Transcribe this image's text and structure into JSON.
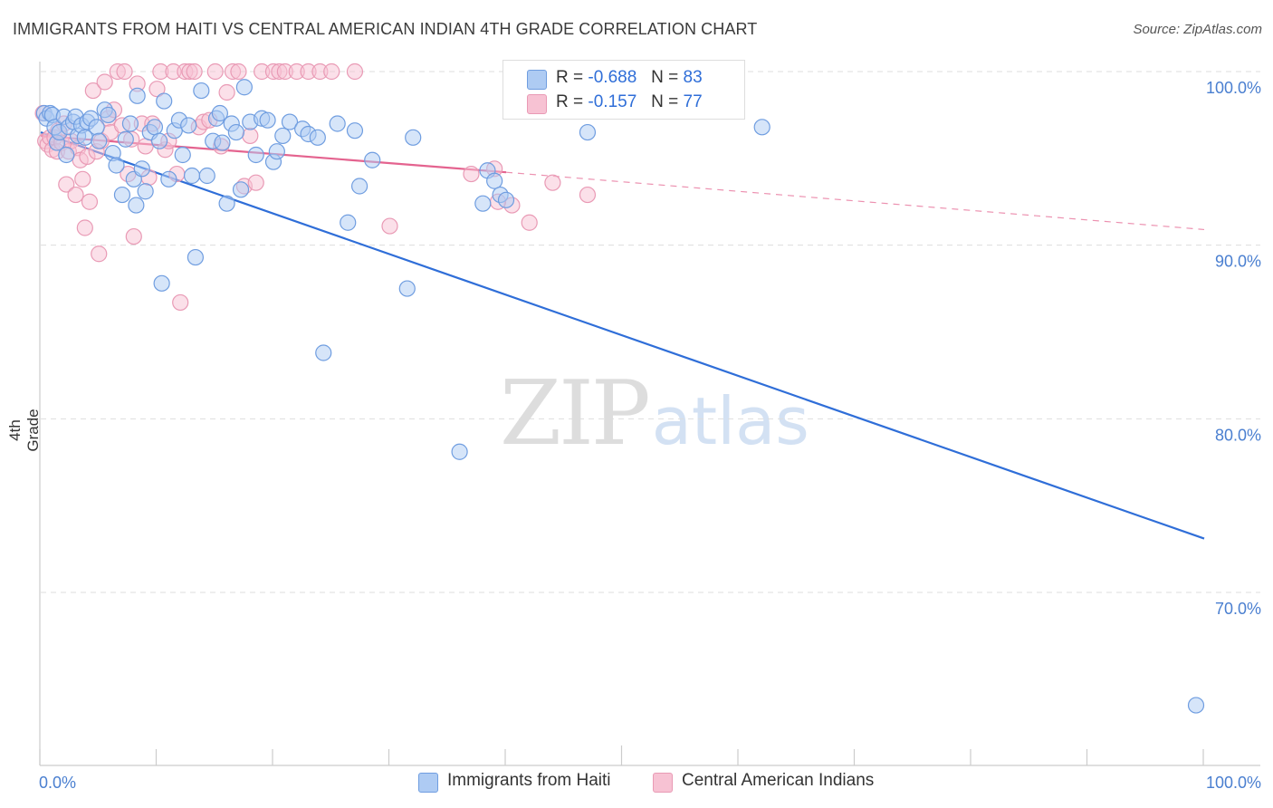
{
  "title": "IMMIGRANTS FROM HAITI VS CENTRAL AMERICAN INDIAN 4TH GRADE CORRELATION CHART",
  "source": "Source: ZipAtlas.com",
  "watermark": {
    "zip": "ZIP",
    "atlas": "atlas"
  },
  "legend": {
    "rows": [
      {
        "r_label": "R =",
        "r_value": "-0.688",
        "n_label": "N =",
        "n_value": "83"
      },
      {
        "r_label": "R =",
        "r_value": "-0.157",
        "n_label": "N =",
        "n_value": "77"
      }
    ]
  },
  "colors": {
    "blue_fill": "#aecbf3",
    "blue_stroke": "#6f9de0",
    "blue_line": "#2f6ed8",
    "pink_fill": "#f7c2d3",
    "pink_stroke": "#e99ab5",
    "pink_line": "#e4638f",
    "grid": "#dddddd",
    "tick_text": "#4a7fd0"
  },
  "chart_data": {
    "type": "scatter",
    "title": "IMMIGRANTS FROM HAITI VS CENTRAL AMERICAN INDIAN 4TH GRADE CORRELATION CHART",
    "xlabel": "",
    "ylabel": "4th Grade",
    "xlim": [
      0,
      100
    ],
    "ylim": [
      60.5,
      101
    ],
    "x_tick_labels": [
      "0.0%",
      "100.0%"
    ],
    "y_ticks": [
      70,
      80,
      90,
      100
    ],
    "y_tick_labels": [
      "70.0%",
      "80.0%",
      "90.0%",
      "100.0%"
    ],
    "grid": true,
    "legend_position": "bottom",
    "series": [
      {
        "name": "Immigrants from Haiti",
        "stats": {
          "R": -0.688,
          "N": 83
        },
        "trend": {
          "x0": 0,
          "y0": 96.5,
          "x1": 100,
          "y1": 73.1
        },
        "points": [
          [
            0.3,
            97.6
          ],
          [
            0.5,
            97.3
          ],
          [
            0.8,
            97.6
          ],
          [
            1.0,
            97.5
          ],
          [
            1.2,
            96.8
          ],
          [
            1.4,
            95.9
          ],
          [
            1.6,
            96.5
          ],
          [
            2.0,
            97.4
          ],
          [
            2.2,
            95.2
          ],
          [
            2.4,
            96.8
          ],
          [
            2.8,
            97.1
          ],
          [
            3.0,
            97.4
          ],
          [
            3.2,
            96.3
          ],
          [
            3.5,
            96.9
          ],
          [
            3.8,
            96.2
          ],
          [
            4.0,
            97.1
          ],
          [
            4.3,
            97.3
          ],
          [
            4.8,
            96.8
          ],
          [
            5.0,
            96.0
          ],
          [
            5.5,
            97.8
          ],
          [
            5.8,
            97.5
          ],
          [
            6.2,
            95.3
          ],
          [
            6.5,
            94.6
          ],
          [
            7.0,
            92.9
          ],
          [
            7.3,
            96.1
          ],
          [
            7.7,
            97.0
          ],
          [
            8.0,
            93.8
          ],
          [
            8.3,
            98.6
          ],
          [
            8.7,
            94.4
          ],
          [
            9.0,
            93.1
          ],
          [
            9.4,
            96.5
          ],
          [
            9.8,
            96.8
          ],
          [
            10.2,
            96.0
          ],
          [
            10.6,
            98.3
          ],
          [
            11.0,
            93.8
          ],
          [
            11.5,
            96.6
          ],
          [
            11.9,
            97.2
          ],
          [
            12.2,
            95.2
          ],
          [
            12.7,
            96.9
          ],
          [
            13.0,
            94.0
          ],
          [
            13.3,
            89.3
          ],
          [
            13.8,
            98.9
          ],
          [
            14.3,
            94.0
          ],
          [
            14.8,
            96.0
          ],
          [
            15.1,
            97.3
          ],
          [
            15.4,
            97.6
          ],
          [
            15.6,
            95.9
          ],
          [
            16.0,
            92.4
          ],
          [
            16.4,
            97.0
          ],
          [
            16.8,
            96.5
          ],
          [
            17.2,
            93.2
          ],
          [
            17.5,
            99.1
          ],
          [
            18.0,
            97.1
          ],
          [
            18.5,
            95.2
          ],
          [
            19.0,
            97.3
          ],
          [
            19.5,
            97.2
          ],
          [
            20.0,
            94.8
          ],
          [
            20.3,
            95.4
          ],
          [
            20.8,
            96.3
          ],
          [
            21.4,
            97.1
          ],
          [
            22.5,
            96.7
          ],
          [
            23.0,
            96.4
          ],
          [
            23.8,
            96.2
          ],
          [
            24.3,
            83.8
          ],
          [
            25.5,
            97.0
          ],
          [
            26.4,
            91.3
          ],
          [
            27.0,
            96.6
          ],
          [
            27.4,
            93.4
          ],
          [
            28.5,
            94.9
          ],
          [
            31.5,
            87.5
          ],
          [
            32.0,
            96.2
          ],
          [
            36.0,
            78.1
          ],
          [
            38.0,
            92.4
          ],
          [
            38.4,
            94.3
          ],
          [
            39.0,
            93.7
          ],
          [
            39.5,
            92.9
          ],
          [
            40.0,
            92.6
          ],
          [
            43.0,
            100.0
          ],
          [
            47.0,
            96.5
          ],
          [
            62.0,
            96.8
          ],
          [
            99.3,
            63.5
          ],
          [
            10.4,
            87.8
          ],
          [
            8.2,
            92.3
          ]
        ]
      },
      {
        "name": "Central American Indians",
        "stats": {
          "R": -0.157,
          "N": 77
        },
        "trend": {
          "x0": 0,
          "y0": 96.3,
          "x1": 40,
          "y1": 94.2,
          "dash_to_x": 100,
          "dash_to_y": 90.9
        },
        "points": [
          [
            0.2,
            97.6
          ],
          [
            0.4,
            96.0
          ],
          [
            0.6,
            95.8
          ],
          [
            0.8,
            96.2
          ],
          [
            1.0,
            95.5
          ],
          [
            1.2,
            96.2
          ],
          [
            1.4,
            95.4
          ],
          [
            1.5,
            96.6
          ],
          [
            1.8,
            95.9
          ],
          [
            2.0,
            97.0
          ],
          [
            2.2,
            93.5
          ],
          [
            2.4,
            95.4
          ],
          [
            2.6,
            96.0
          ],
          [
            3.0,
            92.9
          ],
          [
            3.2,
            95.6
          ],
          [
            3.4,
            94.9
          ],
          [
            3.6,
            93.8
          ],
          [
            3.8,
            91.0
          ],
          [
            4.0,
            95.1
          ],
          [
            4.2,
            92.5
          ],
          [
            4.5,
            98.9
          ],
          [
            4.8,
            95.4
          ],
          [
            5.0,
            89.5
          ],
          [
            5.2,
            96.0
          ],
          [
            5.5,
            99.4
          ],
          [
            5.8,
            97.3
          ],
          [
            6.0,
            96.5
          ],
          [
            6.3,
            97.8
          ],
          [
            6.6,
            100.0
          ],
          [
            7.0,
            96.9
          ],
          [
            7.2,
            100.0
          ],
          [
            7.5,
            94.1
          ],
          [
            7.8,
            96.1
          ],
          [
            8.0,
            90.5
          ],
          [
            8.3,
            99.3
          ],
          [
            8.7,
            97.0
          ],
          [
            9.0,
            95.7
          ],
          [
            9.3,
            93.9
          ],
          [
            9.6,
            97.0
          ],
          [
            10.0,
            99.0
          ],
          [
            10.3,
            100.0
          ],
          [
            10.7,
            95.5
          ],
          [
            11.0,
            96.0
          ],
          [
            11.4,
            100.0
          ],
          [
            11.7,
            94.1
          ],
          [
            12.0,
            86.7
          ],
          [
            12.4,
            100.0
          ],
          [
            12.8,
            100.0
          ],
          [
            13.2,
            100.0
          ],
          [
            13.6,
            96.8
          ],
          [
            14.0,
            97.1
          ],
          [
            14.5,
            97.2
          ],
          [
            15.0,
            100.0
          ],
          [
            15.5,
            95.7
          ],
          [
            16.0,
            98.8
          ],
          [
            16.5,
            100.0
          ],
          [
            17.0,
            100.0
          ],
          [
            17.5,
            93.4
          ],
          [
            18.0,
            96.3
          ],
          [
            18.5,
            93.6
          ],
          [
            19.0,
            100.0
          ],
          [
            20.0,
            100.0
          ],
          [
            20.5,
            100.0
          ],
          [
            21.0,
            100.0
          ],
          [
            22.0,
            100.0
          ],
          [
            23.0,
            100.0
          ],
          [
            24.0,
            100.0
          ],
          [
            25.0,
            100.0
          ],
          [
            27.0,
            100.0
          ],
          [
            30.0,
            91.1
          ],
          [
            37.0,
            94.1
          ],
          [
            39.0,
            94.4
          ],
          [
            40.5,
            92.3
          ],
          [
            42.0,
            91.3
          ],
          [
            44.0,
            93.6
          ],
          [
            47.0,
            92.9
          ],
          [
            39.3,
            92.5
          ]
        ]
      }
    ]
  },
  "bottom_legend": {
    "items": [
      {
        "label": "Immigrants from Haiti"
      },
      {
        "label": "Central American Indians"
      }
    ]
  }
}
